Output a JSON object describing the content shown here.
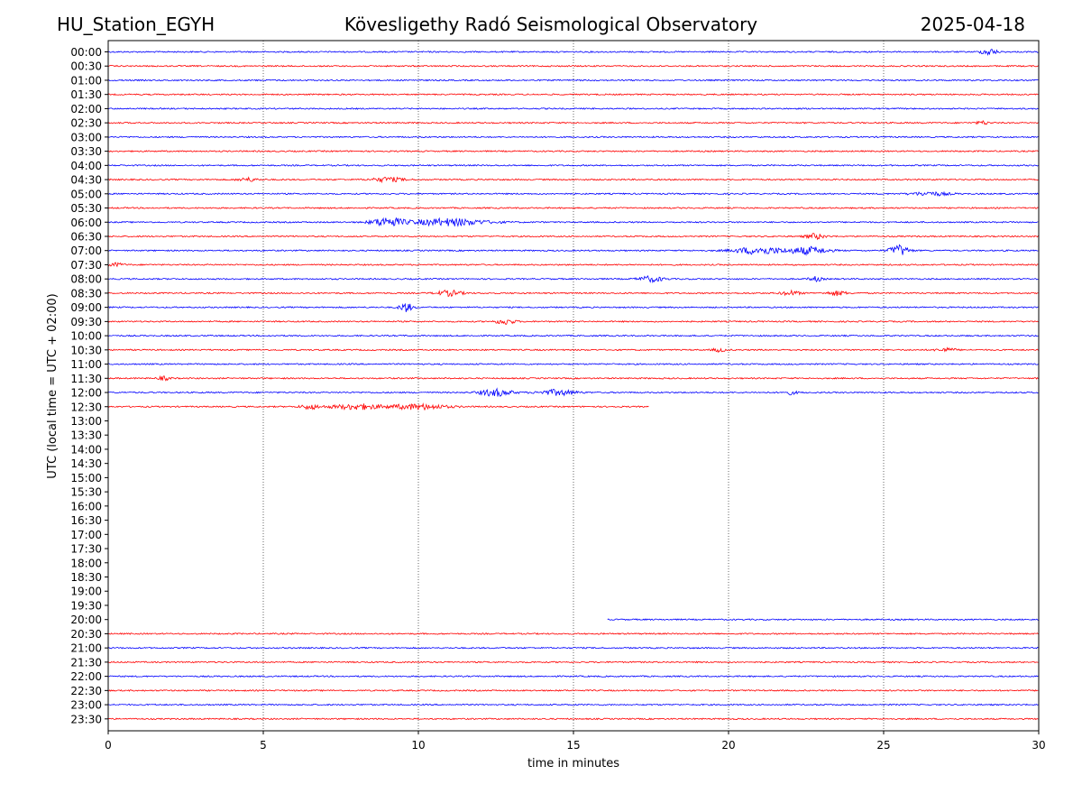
{
  "header": {
    "station": "HU_Station_EGYH",
    "observatory": "Kövesligethy Radó Seismological Observatory",
    "date": "2025-04-18"
  },
  "chart_data": {
    "type": "line",
    "title": "Kövesligethy Radó Seismological Observatory",
    "xlabel": "time in minutes",
    "ylabel": "UTC (local time = UTC + 02:00)",
    "xlim": [
      0,
      30
    ],
    "x_ticks": [
      "0",
      "5",
      "10",
      "15",
      "20",
      "25",
      "30"
    ],
    "x_tick_values": [
      0,
      5,
      10,
      15,
      20,
      25,
      30
    ],
    "grid": "vertical dotted at x ticks",
    "colors": {
      "even_rows": "#0000ff",
      "odd_rows": "#ff0000"
    },
    "rows": [
      {
        "label": "00:00",
        "start": 0,
        "end": 30,
        "bursts": [
          {
            "t": 28.4,
            "amp": 3.5,
            "w": 0.25
          }
        ]
      },
      {
        "label": "00:30",
        "start": 0,
        "end": 30,
        "bursts": []
      },
      {
        "label": "01:00",
        "start": 0,
        "end": 30,
        "bursts": []
      },
      {
        "label": "01:30",
        "start": 0,
        "end": 30,
        "bursts": []
      },
      {
        "label": "02:00",
        "start": 0,
        "end": 30,
        "bursts": []
      },
      {
        "label": "02:30",
        "start": 0,
        "end": 30,
        "bursts": [
          {
            "t": 28.2,
            "amp": 2,
            "w": 0.2
          }
        ]
      },
      {
        "label": "03:00",
        "start": 0,
        "end": 30,
        "bursts": []
      },
      {
        "label": "03:30",
        "start": 0,
        "end": 30,
        "bursts": []
      },
      {
        "label": "04:00",
        "start": 0,
        "end": 30,
        "bursts": []
      },
      {
        "label": "04:30",
        "start": 0,
        "end": 30,
        "bursts": [
          {
            "t": 4.5,
            "amp": 2,
            "w": 0.3
          },
          {
            "t": 9.0,
            "amp": 2.5,
            "w": 0.5
          }
        ]
      },
      {
        "label": "05:00",
        "start": 0,
        "end": 30,
        "bursts": [
          {
            "t": 26.5,
            "amp": 2,
            "w": 0.6
          }
        ]
      },
      {
        "label": "05:30",
        "start": 0,
        "end": 30,
        "bursts": []
      },
      {
        "label": "06:00",
        "start": 0,
        "end": 30,
        "bursts": [
          {
            "t": 9.0,
            "amp": 5,
            "w": 0.5
          },
          {
            "t": 11.0,
            "amp": 4,
            "w": 1.2
          }
        ]
      },
      {
        "label": "06:30",
        "start": 0,
        "end": 30,
        "bursts": [
          {
            "t": 22.8,
            "amp": 3,
            "w": 0.3
          }
        ]
      },
      {
        "label": "07:00",
        "start": 0,
        "end": 30,
        "bursts": [
          {
            "t": 21.0,
            "amp": 4,
            "w": 0.8
          },
          {
            "t": 22.6,
            "amp": 4,
            "w": 0.6
          },
          {
            "t": 25.5,
            "amp": 6,
            "w": 0.3
          }
        ]
      },
      {
        "label": "07:30",
        "start": 0,
        "end": 30,
        "bursts": [
          {
            "t": 0.2,
            "amp": 2,
            "w": 0.3
          }
        ]
      },
      {
        "label": "08:00",
        "start": 0,
        "end": 30,
        "bursts": [
          {
            "t": 17.5,
            "amp": 3,
            "w": 0.4
          },
          {
            "t": 22.8,
            "amp": 2.5,
            "w": 0.2
          }
        ]
      },
      {
        "label": "08:30",
        "start": 0,
        "end": 30,
        "bursts": [
          {
            "t": 11.0,
            "amp": 3,
            "w": 0.4
          },
          {
            "t": 22.0,
            "amp": 2.5,
            "w": 0.3
          },
          {
            "t": 23.5,
            "amp": 2.5,
            "w": 0.3
          }
        ]
      },
      {
        "label": "09:00",
        "start": 0,
        "end": 30,
        "bursts": [
          {
            "t": 9.6,
            "amp": 5,
            "w": 0.2
          }
        ]
      },
      {
        "label": "09:30",
        "start": 0,
        "end": 30,
        "bursts": [
          {
            "t": 12.8,
            "amp": 3,
            "w": 0.3
          }
        ]
      },
      {
        "label": "10:00",
        "start": 0,
        "end": 30,
        "bursts": []
      },
      {
        "label": "10:30",
        "start": 0,
        "end": 30,
        "bursts": [
          {
            "t": 19.7,
            "amp": 2,
            "w": 0.2
          },
          {
            "t": 27.0,
            "amp": 2,
            "w": 0.3
          }
        ]
      },
      {
        "label": "11:00",
        "start": 0,
        "end": 30,
        "bursts": []
      },
      {
        "label": "11:30",
        "start": 0,
        "end": 30,
        "bursts": [
          {
            "t": 1.8,
            "amp": 2,
            "w": 0.2
          }
        ]
      },
      {
        "label": "12:00",
        "start": 0,
        "end": 30,
        "bursts": [
          {
            "t": 12.5,
            "amp": 4,
            "w": 0.5
          },
          {
            "t": 14.5,
            "amp": 3,
            "w": 0.6
          },
          {
            "t": 22.0,
            "amp": 2,
            "w": 0.2
          }
        ]
      },
      {
        "label": "12:30",
        "start": 0,
        "end": 17.45,
        "bursts": [
          {
            "t": 6.5,
            "amp": 2.5,
            "w": 0.3
          },
          {
            "t": 8.0,
            "amp": 3,
            "w": 0.8
          },
          {
            "t": 10.0,
            "amp": 3,
            "w": 0.9
          }
        ]
      },
      {
        "label": "13:00",
        "start": null,
        "end": null,
        "bursts": []
      },
      {
        "label": "13:30",
        "start": null,
        "end": null,
        "bursts": []
      },
      {
        "label": "14:00",
        "start": null,
        "end": null,
        "bursts": []
      },
      {
        "label": "14:30",
        "start": null,
        "end": null,
        "bursts": []
      },
      {
        "label": "15:00",
        "start": null,
        "end": null,
        "bursts": []
      },
      {
        "label": "15:30",
        "start": null,
        "end": null,
        "bursts": []
      },
      {
        "label": "16:00",
        "start": null,
        "end": null,
        "bursts": []
      },
      {
        "label": "16:30",
        "start": null,
        "end": null,
        "bursts": []
      },
      {
        "label": "17:00",
        "start": null,
        "end": null,
        "bursts": []
      },
      {
        "label": "17:30",
        "start": null,
        "end": null,
        "bursts": []
      },
      {
        "label": "18:00",
        "start": null,
        "end": null,
        "bursts": []
      },
      {
        "label": "18:30",
        "start": null,
        "end": null,
        "bursts": []
      },
      {
        "label": "19:00",
        "start": null,
        "end": null,
        "bursts": []
      },
      {
        "label": "19:30",
        "start": null,
        "end": null,
        "bursts": []
      },
      {
        "label": "20:00",
        "start": 16.1,
        "end": 30,
        "bursts": []
      },
      {
        "label": "20:30",
        "start": 0,
        "end": 30,
        "bursts": []
      },
      {
        "label": "21:00",
        "start": 0,
        "end": 30,
        "bursts": []
      },
      {
        "label": "21:30",
        "start": 0,
        "end": 30,
        "bursts": []
      },
      {
        "label": "22:00",
        "start": 0,
        "end": 30,
        "bursts": []
      },
      {
        "label": "22:30",
        "start": 0,
        "end": 30,
        "bursts": []
      },
      {
        "label": "23:00",
        "start": 0,
        "end": 30,
        "bursts": []
      },
      {
        "label": "23:30",
        "start": 0,
        "end": 30,
        "bursts": []
      }
    ]
  }
}
